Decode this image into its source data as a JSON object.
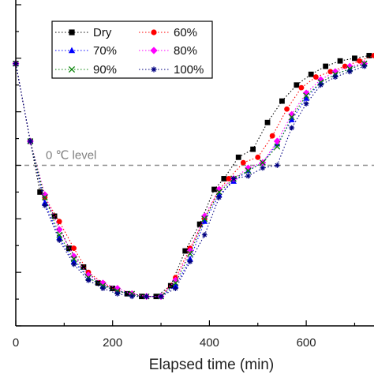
{
  "chart_data": {
    "type": "line",
    "xlabel": "Elapsed time (min)",
    "ylabel": "",
    "xlim": [
      0,
      740
    ],
    "x_ticks": [
      0,
      200,
      400,
      600
    ],
    "ylim": [
      -30,
      30
    ],
    "y_ticks": [
      -30,
      -20,
      -10,
      0,
      10,
      20,
      30
    ],
    "grid": false,
    "legend_position": "top-left",
    "reference_line": {
      "y": 0,
      "label": "0 ℃ level",
      "style": "dashed",
      "color": "#8c8c8c"
    },
    "series": [
      {
        "name": "Dry",
        "color": "#000000",
        "marker": "square",
        "x": [
          0,
          30,
          50,
          80,
          110,
          140,
          170,
          200,
          230,
          260,
          290,
          320,
          350,
          380,
          410,
          430,
          460,
          490,
          520,
          550,
          580,
          610,
          640,
          670,
          700,
          730
        ],
        "y": [
          19,
          4.5,
          -5,
          -9.5,
          -15.5,
          -19,
          -22,
          -23,
          -24,
          -24.5,
          -24.5,
          -22.5,
          -16,
          -11,
          -4.5,
          -2.5,
          1.5,
          3,
          8,
          12,
          15,
          17,
          18.5,
          19.5,
          20,
          20.5
        ]
      },
      {
        "name": "60%",
        "color": "#ff0000",
        "marker": "circle",
        "x": [
          0,
          30,
          60,
          90,
          120,
          150,
          180,
          210,
          240,
          270,
          300,
          330,
          360,
          390,
          420,
          440,
          470,
          500,
          530,
          560,
          590,
          620,
          650,
          680,
          710,
          740
        ],
        "y": [
          19,
          4.5,
          -6,
          -10.5,
          -15.5,
          -20,
          -22,
          -23.5,
          -24,
          -24.5,
          -24.5,
          -21,
          -15.5,
          -10,
          -4.5,
          -2.5,
          0.5,
          1.5,
          5.5,
          10.5,
          14.5,
          16.5,
          17.5,
          18.5,
          19.5,
          20.5
        ]
      },
      {
        "name": "70%",
        "color": "#0000ff",
        "marker": "triangle",
        "x": [
          0,
          30,
          60,
          90,
          120,
          150,
          180,
          210,
          240,
          270,
          300,
          330,
          360,
          390,
          420,
          450,
          480,
          510,
          540,
          570,
          600,
          630,
          660,
          690,
          720
        ],
        "y": [
          19,
          4.5,
          -7,
          -13.5,
          -18,
          -21,
          -22.5,
          -23.5,
          -24,
          -24.5,
          -24.5,
          -22.5,
          -17.5,
          -10.5,
          -5.5,
          -3,
          -1,
          0.5,
          4,
          8.5,
          12.5,
          15.5,
          17,
          18,
          19
        ]
      },
      {
        "name": "80%",
        "color": "#ff00ff",
        "marker": "diamond",
        "x": [
          0,
          30,
          60,
          90,
          120,
          150,
          180,
          210,
          240,
          270,
          300,
          330,
          360,
          390,
          420,
          450,
          480,
          510,
          540,
          570,
          600,
          630,
          660,
          690,
          720
        ],
        "y": [
          19,
          4.5,
          -5.5,
          -12,
          -17,
          -20.5,
          -22,
          -23,
          -24,
          -24.5,
          -24.5,
          -21.5,
          -16,
          -9.5,
          -4.5,
          -2.5,
          -0.5,
          0.5,
          4.5,
          9.5,
          13.5,
          16,
          17.5,
          18.5,
          19
        ]
      },
      {
        "name": "90%",
        "color": "#008000",
        "marker": "x",
        "x": [
          0,
          30,
          60,
          90,
          120,
          150,
          180,
          210,
          240,
          270,
          300,
          330,
          360,
          390,
          420,
          450,
          480,
          510,
          540,
          570,
          600,
          630,
          660,
          690,
          720
        ],
        "y": [
          19,
          4.5,
          -6,
          -13,
          -17.5,
          -21,
          -22.5,
          -23.5,
          -24,
          -24.5,
          -24.5,
          -22,
          -16.5,
          -10,
          -5,
          -2.5,
          -1,
          0.5,
          3.5,
          9,
          13,
          15.5,
          17,
          18,
          19
        ]
      },
      {
        "name": "100%",
        "color": "#000080",
        "marker": "star",
        "x": [
          0,
          30,
          60,
          90,
          120,
          150,
          180,
          210,
          240,
          270,
          300,
          330,
          360,
          390,
          420,
          450,
          480,
          510,
          540,
          570,
          600,
          630,
          660,
          690,
          720
        ],
        "y": [
          19,
          4.5,
          -7.5,
          -14,
          -18.5,
          -21.5,
          -23,
          -24,
          -24.5,
          -24.5,
          -24.5,
          -23,
          -18,
          -13,
          -6,
          -2.5,
          -2,
          -0.5,
          0,
          7,
          11.5,
          15,
          16.5,
          17.5,
          18.5
        ]
      }
    ]
  }
}
